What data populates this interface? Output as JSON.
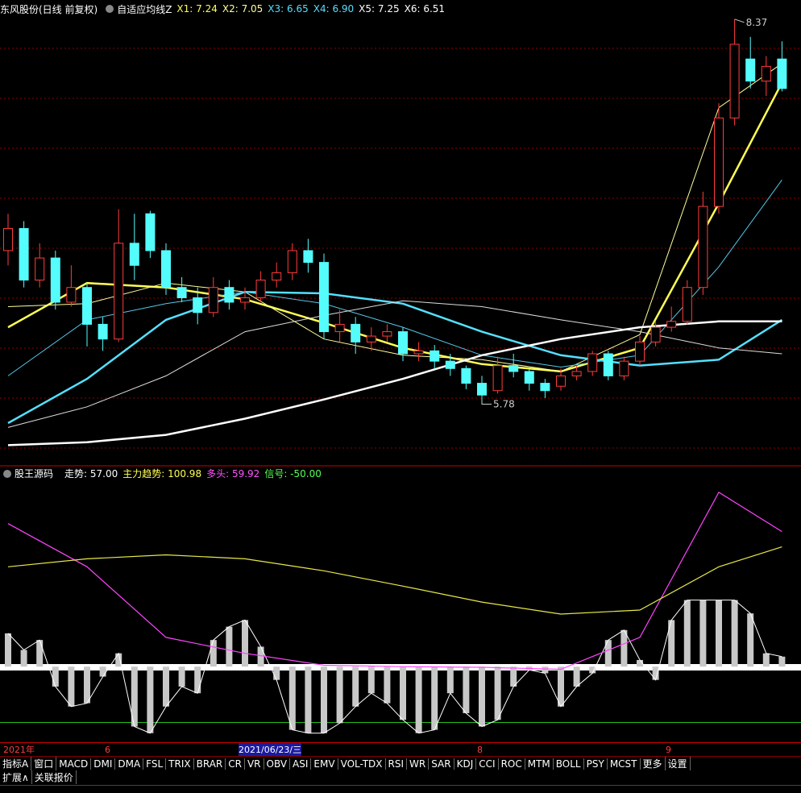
{
  "header": {
    "stock": "东风股份(日线 前复权)",
    "indicator": "自适应均线Z",
    "legend": [
      {
        "text": "X1: 7.24",
        "color": "#ffff54"
      },
      {
        "text": "X2: 7.05",
        "color": "#ffff9a"
      },
      {
        "text": "X3: 6.65",
        "color": "#54e0ff"
      },
      {
        "text": "X4: 6.90",
        "color": "#54e0ff"
      },
      {
        "text": "X5: 7.25",
        "color": "#ffffff"
      },
      {
        "text": "X6: 6.51",
        "color": "#ffffff"
      }
    ]
  },
  "sub_header": {
    "indicator": "股王源码",
    "legend": [
      {
        "text": "走势: 57.00",
        "color": "#ffffff"
      },
      {
        "text": "主力趋势: 100.98",
        "color": "#ffff54"
      },
      {
        "text": "多头: 59.92",
        "color": "#ff54ff"
      },
      {
        "text": "信号: -50.00",
        "color": "#54ff54"
      }
    ]
  },
  "chart_data": [
    {
      "type": "candlestick",
      "ylim": [
        5.34,
        8.38
      ],
      "up_color": "#ff3c3c",
      "down_color": "#54fcfc",
      "open": [
        6.8,
        6.95,
        6.6,
        6.75,
        6.45,
        6.55,
        6.3,
        6.2,
        6.85,
        7.05,
        6.8,
        6.55,
        6.48,
        6.38,
        6.55,
        6.45,
        6.48,
        6.6,
        6.65,
        6.8,
        6.72,
        6.25,
        6.3,
        6.18,
        6.22,
        6.25,
        6.1,
        6.12,
        6.05,
        6.0,
        5.9,
        5.85,
        6.02,
        5.98,
        5.9,
        5.88,
        5.95,
        5.98,
        6.1,
        5.95,
        6.05,
        6.18,
        6.28,
        6.32,
        6.55,
        7.1,
        7.7,
        8.1,
        7.95,
        8.1
      ],
      "high": [
        7.05,
        7.0,
        6.85,
        6.8,
        6.7,
        6.58,
        6.35,
        7.08,
        7.05,
        7.07,
        6.85,
        6.62,
        6.55,
        6.62,
        6.6,
        6.55,
        6.66,
        6.72,
        6.85,
        6.88,
        6.78,
        6.4,
        6.35,
        6.28,
        6.3,
        6.28,
        6.18,
        6.16,
        6.1,
        6.02,
        5.95,
        6.08,
        6.1,
        6.0,
        5.93,
        6.0,
        6.02,
        6.12,
        6.12,
        6.08,
        6.22,
        6.32,
        6.42,
        6.6,
        7.2,
        7.8,
        8.37,
        8.25,
        8.12,
        8.22
      ],
      "low": [
        6.7,
        6.55,
        6.55,
        6.4,
        6.42,
        6.15,
        6.12,
        6.18,
        6.6,
        6.75,
        6.5,
        6.45,
        6.3,
        6.35,
        6.4,
        6.4,
        6.45,
        6.55,
        6.6,
        6.65,
        6.2,
        6.18,
        6.1,
        6.12,
        6.18,
        6.05,
        6.05,
        6.0,
        5.95,
        5.86,
        5.78,
        5.83,
        5.94,
        5.85,
        5.8,
        5.85,
        5.92,
        5.95,
        5.92,
        5.92,
        6.02,
        6.15,
        6.25,
        6.3,
        6.5,
        7.05,
        7.65,
        7.9,
        7.85,
        7.88
      ],
      "close": [
        6.95,
        6.6,
        6.75,
        6.45,
        6.55,
        6.3,
        6.2,
        6.85,
        6.7,
        6.8,
        6.55,
        6.48,
        6.38,
        6.55,
        6.45,
        6.48,
        6.6,
        6.65,
        6.8,
        6.72,
        6.25,
        6.3,
        6.18,
        6.22,
        6.25,
        6.1,
        6.12,
        6.05,
        6.0,
        5.9,
        5.82,
        6.02,
        5.98,
        5.9,
        5.85,
        5.95,
        5.98,
        6.1,
        5.95,
        6.05,
        6.18,
        6.28,
        6.32,
        6.55,
        7.1,
        7.7,
        8.2,
        7.95,
        8.05,
        7.9
      ],
      "lines": [
        {
          "color": "#ffff54",
          "thick": true,
          "x": [
            0,
            5,
            10,
            15,
            20,
            25,
            30,
            35,
            40,
            45,
            49
          ],
          "values": [
            6.28,
            6.58,
            6.55,
            6.47,
            6.31,
            6.14,
            6.03,
            5.98,
            6.14,
            7.12,
            7.94
          ]
        },
        {
          "color": "#ffff9a",
          "thick": false,
          "x": [
            0,
            5,
            10,
            15,
            20,
            25,
            30,
            35,
            40,
            45,
            49
          ],
          "values": [
            6.42,
            6.44,
            6.58,
            6.52,
            6.2,
            6.09,
            6.06,
            5.98,
            6.23,
            7.77,
            8.07
          ]
        },
        {
          "color": "#54e0ff",
          "thick": true,
          "x": [
            0,
            5,
            10,
            15,
            20,
            25,
            30,
            35,
            40,
            45,
            49
          ],
          "values": [
            5.63,
            5.93,
            6.33,
            6.52,
            6.51,
            6.44,
            6.25,
            6.09,
            6.02,
            6.06,
            6.33
          ]
        },
        {
          "color": "#54c8e8",
          "thick": false,
          "x": [
            0,
            5,
            10,
            15,
            20,
            25,
            30,
            35,
            40,
            45,
            49
          ],
          "values": [
            5.95,
            6.33,
            6.44,
            6.52,
            6.44,
            6.28,
            6.09,
            6.01,
            6.09,
            6.69,
            7.28
          ]
        },
        {
          "color": "#dddddd",
          "thick": false,
          "x": [
            0,
            5,
            10,
            15,
            20,
            25,
            30,
            35,
            40,
            45,
            49
          ],
          "values": [
            5.6,
            5.74,
            5.95,
            6.25,
            6.36,
            6.46,
            6.42,
            6.33,
            6.25,
            6.14,
            6.1
          ]
        },
        {
          "color": "#ffffff",
          "thick": true,
          "x": [
            0,
            5,
            10,
            15,
            20,
            25,
            30,
            35,
            40,
            45,
            49
          ],
          "values": [
            5.48,
            5.5,
            5.55,
            5.66,
            5.79,
            5.93,
            6.09,
            6.2,
            6.28,
            6.32,
            6.32
          ]
        }
      ],
      "annotations": [
        "8.37",
        "5.78"
      ]
    },
    {
      "type": "histogram-lines",
      "ylim": [
        -110,
        280
      ],
      "color": "#c8c8c8",
      "values": [
        50,
        25,
        40,
        -30,
        -60,
        -55,
        -15,
        20,
        -90,
        -100,
        -60,
        -30,
        -40,
        40,
        60,
        70,
        30,
        -20,
        -95,
        -100,
        -100,
        -85,
        -60,
        -40,
        -55,
        -80,
        -100,
        -95,
        -40,
        -70,
        -90,
        -80,
        -30,
        -5,
        -10,
        -60,
        -30,
        -10,
        40,
        55,
        10,
        -20,
        70,
        100,
        100,
        100,
        100,
        80,
        20,
        15
      ],
      "lines": [
        {
          "color": "#ff44ff",
          "x": [
            0,
            5,
            10,
            15,
            20,
            25,
            30,
            35,
            40,
            45,
            49
          ],
          "values": [
            215,
            150,
            44,
            20,
            2,
            0,
            -1,
            -4,
            44,
            262,
            203
          ]
        },
        {
          "color": "#e8e84a",
          "x": [
            0,
            5,
            10,
            15,
            20,
            25,
            30,
            35,
            40,
            45,
            49
          ],
          "values": [
            150,
            162,
            168,
            162,
            144,
            121,
            97,
            79,
            85,
            150,
            180
          ]
        }
      ],
      "hline": {
        "value": -84,
        "color": "#20c020"
      }
    }
  ],
  "dates": [
    "2021年",
    "6",
    "2021/06/23/三",
    "8",
    "9"
  ],
  "tabs": [
    "指标A",
    "窗口",
    "MACD",
    "DMI",
    "DMA",
    "FSL",
    "TRIX",
    "BRAR",
    "CR",
    "VR",
    "OBV",
    "ASI",
    "EMV",
    "VOL-TDX",
    "RSI",
    "WR",
    "SAR",
    "KDJ",
    "CCI",
    "ROC",
    "MTM",
    "BOLL",
    "PSY",
    "MCST",
    "更多",
    "设置"
  ],
  "extra_tabs": [
    "扩展∧",
    "关联报价"
  ]
}
